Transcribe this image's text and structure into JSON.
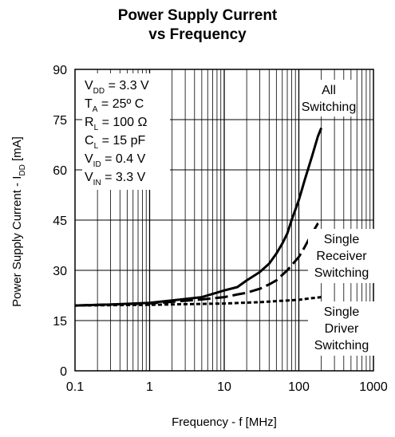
{
  "chart_data": {
    "type": "line",
    "title_line1": "Power Supply Current",
    "title_line2": "vs Frequency",
    "xlabel": "Frequency - f [MHz]",
    "ylabel_main": "Power Supply Current - I",
    "ylabel_sub": "DD",
    "ylabel_unit": " [mA]",
    "x_scale": "log",
    "xlim": [
      0.1,
      1000
    ],
    "ylim": [
      0,
      90
    ],
    "grid": true,
    "x_ticks": [
      "0.1",
      "1",
      "10",
      "100",
      "1000"
    ],
    "x_tick_values": [
      0.1,
      1,
      10,
      100,
      1000
    ],
    "y_ticks": [
      "0",
      "15",
      "30",
      "45",
      "60",
      "75",
      "90"
    ],
    "y_tick_values": [
      0,
      15,
      30,
      45,
      60,
      75,
      90
    ],
    "conditions": [
      {
        "sym": "V",
        "sub": "DD",
        "rest": " = 3.3 V"
      },
      {
        "sym": "T",
        "sub": "A",
        "rest": " = 25º C"
      },
      {
        "sym": "R",
        "sub": "L",
        "rest": " = 100 Ω"
      },
      {
        "sym": "C",
        "sub": "L",
        "rest": " = 15 pF"
      },
      {
        "sym": "V",
        "sub": "ID",
        "rest": " = 0.4 V"
      },
      {
        "sym": "V",
        "sub": "IN",
        "rest": " = 3.3 V"
      }
    ],
    "series": [
      {
        "label_lines": [
          "All",
          "Switching"
        ],
        "style": "solid",
        "x": [
          0.1,
          0.3,
          1,
          2,
          5,
          10,
          15,
          20,
          30,
          40,
          50,
          60,
          70,
          80,
          100,
          120,
          150,
          180,
          200
        ],
        "y": [
          19.5,
          19.8,
          20.3,
          21,
          22,
          24,
          25,
          27,
          29.5,
          32,
          35,
          38,
          41,
          45,
          51,
          57,
          64,
          70,
          72.5
        ]
      },
      {
        "label_lines": [
          "Single",
          "Receiver",
          "Switching"
        ],
        "style": "dashed",
        "x": [
          0.1,
          0.3,
          1,
          2,
          5,
          10,
          15,
          20,
          30,
          40,
          50,
          70,
          100,
          120,
          150,
          180,
          200
        ],
        "y": [
          19.5,
          19.8,
          20.1,
          20.6,
          21.3,
          22,
          22.8,
          23.3,
          24.5,
          25.8,
          27,
          30,
          34,
          37,
          41,
          44,
          45
        ]
      },
      {
        "label_lines": [
          "Single",
          "Driver",
          "Switching"
        ],
        "style": "dotted",
        "x": [
          0.1,
          1,
          10,
          30,
          50,
          100,
          150,
          200
        ],
        "y": [
          19.5,
          19.7,
          20.1,
          20.5,
          20.8,
          21.2,
          21.7,
          22
        ]
      }
    ]
  }
}
